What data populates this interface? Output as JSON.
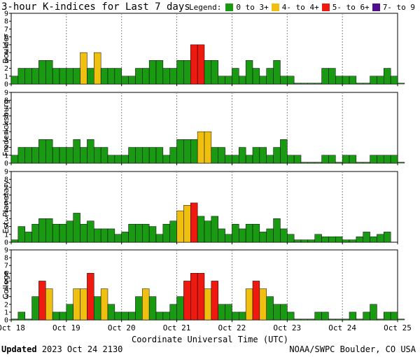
{
  "title": "3-hour K-indices for Last 7 days",
  "legend": {
    "label": "Legend:",
    "items": [
      {
        "text": "0 to 3+",
        "color": "#1a9a12"
      },
      {
        "text": "4- to 4+",
        "color": "#f0c010"
      },
      {
        "text": "5- to 6+",
        "color": "#ee1a10"
      },
      {
        "text": "7- to 9",
        "color": "#50108a"
      }
    ]
  },
  "footer": {
    "updated_label": "Updated",
    "updated_value": "2023 Oct 24 2130",
    "source": "NOAA/SWPC Boulder, CO USA"
  },
  "chart_data": [
    {
      "type": "bar",
      "ylabel": "Boulder",
      "ylim": [
        0,
        9
      ],
      "xlabel": "Coordinate Universal Time (UTC)",
      "x_ticks": [
        "Oct 18",
        "Oct 19",
        "Oct 20",
        "Oct 21",
        "Oct 22",
        "Oct 23",
        "Oct 24",
        "Oct 25"
      ],
      "values": [
        1,
        2,
        2,
        2,
        3,
        3,
        2,
        2,
        2,
        2,
        4,
        2,
        4,
        2,
        2,
        2,
        1,
        1,
        2,
        2,
        3,
        3,
        2,
        2,
        3,
        3,
        5,
        5,
        3,
        3,
        1,
        1,
        2,
        1,
        3,
        2,
        1,
        2,
        3,
        1,
        1,
        0,
        0,
        0,
        0,
        2,
        2,
        1,
        1,
        1,
        0,
        0,
        1,
        1,
        2,
        1,
        0
      ]
    },
    {
      "type": "bar",
      "ylabel": "Fredericksburg",
      "ylim": [
        0,
        9
      ],
      "xlabel": "",
      "x_ticks": [
        "Oct 18",
        "Oct 19",
        "Oct 20",
        "Oct 21",
        "Oct 22",
        "Oct 23",
        "Oct 24",
        "Oct 25"
      ],
      "values": [
        1,
        2,
        2,
        2,
        3,
        3,
        2,
        2,
        2,
        3,
        2,
        3,
        2,
        2,
        1,
        1,
        1,
        2,
        2,
        2,
        2,
        2,
        1,
        2,
        3,
        3,
        3,
        4,
        4,
        2,
        2,
        1,
        1,
        2,
        1,
        2,
        2,
        1,
        2,
        3,
        1,
        1,
        0,
        0,
        0,
        1,
        1,
        0,
        1,
        1,
        0,
        0,
        1,
        1,
        1,
        1,
        0
      ]
    },
    {
      "type": "bar",
      "ylabel": "Est. Planetary",
      "ylim": [
        0,
        9
      ],
      "xlabel": "",
      "x_ticks": [
        "Oct 18",
        "Oct 19",
        "Oct 20",
        "Oct 21",
        "Oct 22",
        "Oct 23",
        "Oct 24",
        "Oct 25"
      ],
      "values": [
        0.3,
        2,
        1.3,
        2.3,
        3,
        3,
        2.3,
        2.3,
        2.7,
        3.7,
        2.3,
        2.7,
        1.7,
        1.7,
        1.7,
        1,
        1.3,
        2.3,
        2.3,
        2.3,
        2,
        1,
        2.3,
        2.7,
        4,
        4.7,
        5,
        3.3,
        2.7,
        3.3,
        1.7,
        1,
        2.3,
        1.7,
        2.3,
        2.3,
        1.3,
        1.7,
        3,
        1.7,
        1,
        0.3,
        0.3,
        0.3,
        1,
        0.7,
        0.7,
        0.7,
        0.3,
        0.3,
        0.7,
        1.3,
        0.7,
        1,
        1.3
      ]
    },
    {
      "type": "bar",
      "ylabel": "College",
      "ylim": [
        0,
        9
      ],
      "xlabel": "",
      "x_ticks": [
        "Oct 18",
        "Oct 19",
        "Oct 20",
        "Oct 21",
        "Oct 22",
        "Oct 23",
        "Oct 24",
        "Oct 25"
      ],
      "values": [
        0,
        1,
        0,
        3,
        5,
        4,
        1,
        1,
        2,
        4,
        4,
        6,
        3,
        4,
        2,
        1,
        1,
        1,
        3,
        4,
        3,
        1,
        1,
        2,
        3,
        5,
        6,
        6,
        4,
        5,
        2,
        2,
        1,
        1,
        4,
        5,
        4,
        3,
        2,
        2,
        1,
        0,
        0,
        0,
        1,
        1,
        0,
        0,
        0,
        1,
        0,
        1,
        2,
        0,
        1,
        1,
        0
      ]
    }
  ]
}
